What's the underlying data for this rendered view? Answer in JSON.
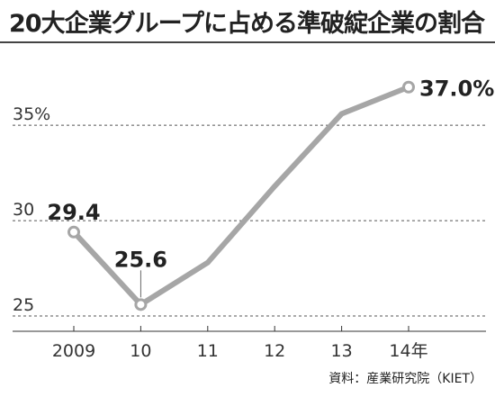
{
  "chart_data": {
    "type": "line",
    "title": "20大企業グループに占める準破綻企業の割合",
    "categories": [
      "2009",
      "10",
      "11",
      "12",
      "13",
      "14年"
    ],
    "series": [
      {
        "values": [
          29.4,
          25.6,
          27.8,
          31.8,
          35.6,
          37.0
        ]
      }
    ],
    "yticks": [
      {
        "value": 35,
        "label": "35%"
      },
      {
        "value": 30,
        "label": "30"
      },
      {
        "value": 25,
        "label": "25"
      }
    ],
    "ylim": [
      24.2,
      39.3
    ],
    "data_labels": [
      {
        "index": 0,
        "text": "29.4"
      },
      {
        "index": 1,
        "text": "25.6"
      },
      {
        "index": 5,
        "text": "37.0%"
      }
    ],
    "grid": "dashed horizontal",
    "line_color": "#a6a6a6",
    "source": "資料：産業研究院（KIET）"
  }
}
